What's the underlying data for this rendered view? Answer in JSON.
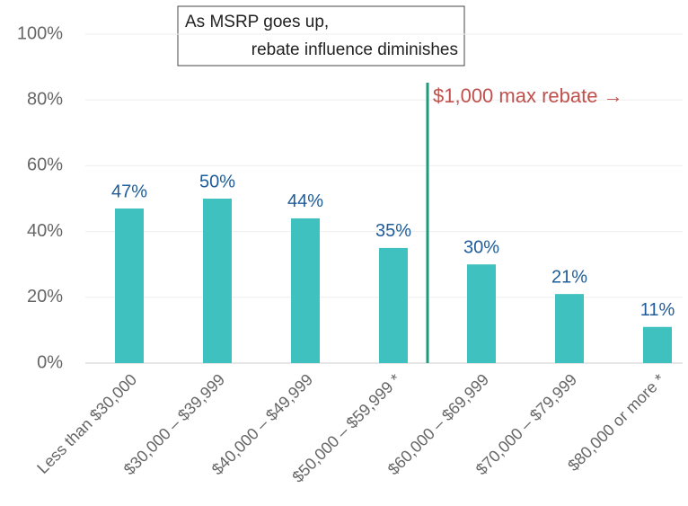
{
  "chart_data": {
    "type": "bar",
    "categories": [
      "Less than $30,000",
      "$30,000 – $39,999",
      "$40,000 – $49,999",
      "$50,000 – $59,999 *",
      "$60,000 – $69,999",
      "$70,000 – $79,999",
      "$80,000 or more *"
    ],
    "values": [
      47,
      50,
      44,
      35,
      30,
      21,
      11
    ],
    "value_labels": [
      "47%",
      "50%",
      "44%",
      "35%",
      "30%",
      "21%",
      "11%"
    ],
    "color": "#3fc1c0",
    "ylim": [
      0,
      100
    ],
    "yticks": [
      {
        "value": 0,
        "label": "0%"
      },
      {
        "value": 20,
        "label": "20%"
      },
      {
        "value": 40,
        "label": "40%"
      },
      {
        "value": 60,
        "label": "60%"
      },
      {
        "value": 80,
        "label": "80%"
      },
      {
        "value": 100,
        "label": "100%"
      }
    ],
    "grid": true,
    "annotation": [
      "As MSRP goes up,",
      "rebate influence diminishes"
    ],
    "reference_line": {
      "label": "$1,000 max rebate →",
      "color": "#1e9b7e",
      "label_color": "#c0504d"
    }
  }
}
